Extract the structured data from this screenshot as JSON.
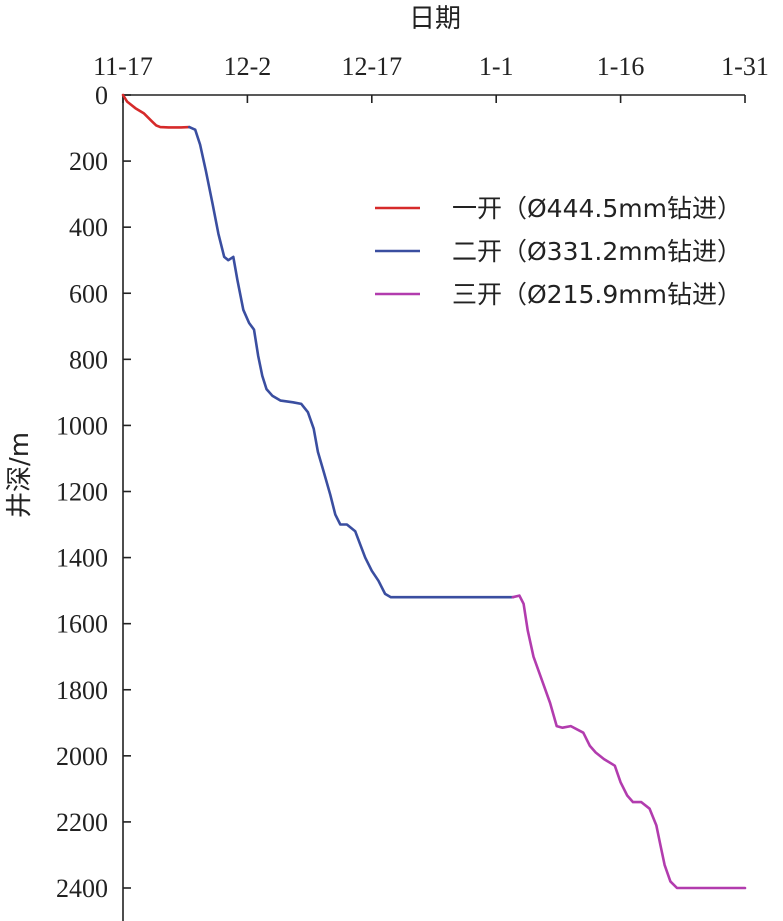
{
  "chart_data": {
    "type": "line",
    "title": "",
    "xlabel": "日期",
    "ylabel": "井深/m",
    "x_axis_position": "top",
    "y_axis_inverted": true,
    "x_ticks": [
      "11-17",
      "12-2",
      "12-17",
      "1-1",
      "1-16",
      "1-31"
    ],
    "x_tick_days": [
      0,
      15,
      30,
      45,
      60,
      75
    ],
    "y_ticks": [
      0,
      200,
      400,
      600,
      800,
      1000,
      1200,
      1400,
      1600,
      1800,
      2000,
      2200,
      2400
    ],
    "xlim_days_from_11_17": [
      0,
      75
    ],
    "ylim": [
      0,
      2400
    ],
    "x_unit_note": "x values are days after 11-17",
    "legend_position": "top-right",
    "series": [
      {
        "name": "一开（Ø444.5mm钻进）",
        "color": "#d62a2a",
        "points": [
          [
            0,
            0
          ],
          [
            0.5,
            20
          ],
          [
            1.5,
            40
          ],
          [
            2.5,
            55
          ],
          [
            3.5,
            80
          ],
          [
            4.0,
            92
          ],
          [
            4.5,
            97
          ],
          [
            5.5,
            98
          ],
          [
            7.0,
            98
          ],
          [
            8.0,
            97
          ]
        ]
      },
      {
        "name": "二开（Ø331.2mm钻进）",
        "color": "#3a4ea0",
        "points": [
          [
            8.0,
            97
          ],
          [
            8.7,
            105
          ],
          [
            9.3,
            150
          ],
          [
            10.0,
            230
          ],
          [
            10.8,
            330
          ],
          [
            11.5,
            420
          ],
          [
            12.2,
            490
          ],
          [
            12.7,
            500
          ],
          [
            13.3,
            490
          ],
          [
            13.8,
            560
          ],
          [
            14.5,
            650
          ],
          [
            15.2,
            690
          ],
          [
            15.8,
            710
          ],
          [
            16.3,
            790
          ],
          [
            16.8,
            850
          ],
          [
            17.3,
            890
          ],
          [
            18.0,
            910
          ],
          [
            19.0,
            925
          ],
          [
            20.5,
            930
          ],
          [
            21.5,
            935
          ],
          [
            22.3,
            960
          ],
          [
            23.0,
            1010
          ],
          [
            23.5,
            1080
          ],
          [
            24.2,
            1140
          ],
          [
            25.0,
            1210
          ],
          [
            25.6,
            1270
          ],
          [
            26.2,
            1300
          ],
          [
            27.0,
            1300
          ],
          [
            28.0,
            1320
          ],
          [
            28.6,
            1360
          ],
          [
            29.2,
            1400
          ],
          [
            30.0,
            1440
          ],
          [
            30.8,
            1470
          ],
          [
            31.6,
            1510
          ],
          [
            32.3,
            1520
          ],
          [
            36.0,
            1520
          ],
          [
            40.0,
            1520
          ],
          [
            44.0,
            1520
          ],
          [
            47.0,
            1520
          ]
        ]
      },
      {
        "name": "三开（Ø215.9mm钻进）",
        "color": "#b23cae",
        "points": [
          [
            47.0,
            1520
          ],
          [
            47.8,
            1515
          ],
          [
            48.3,
            1540
          ],
          [
            48.8,
            1620
          ],
          [
            49.5,
            1700
          ],
          [
            50.5,
            1770
          ],
          [
            51.5,
            1840
          ],
          [
            52.3,
            1910
          ],
          [
            53.0,
            1915
          ],
          [
            54.0,
            1910
          ],
          [
            55.5,
            1930
          ],
          [
            56.3,
            1970
          ],
          [
            57.0,
            1990
          ],
          [
            58.0,
            2010
          ],
          [
            59.3,
            2030
          ],
          [
            60.0,
            2080
          ],
          [
            60.8,
            2120
          ],
          [
            61.5,
            2140
          ],
          [
            62.5,
            2140
          ],
          [
            63.5,
            2160
          ],
          [
            64.3,
            2210
          ],
          [
            64.8,
            2270
          ],
          [
            65.3,
            2330
          ],
          [
            66.0,
            2380
          ],
          [
            66.8,
            2400
          ],
          [
            68.0,
            2400
          ],
          [
            70.0,
            2400
          ],
          [
            75.0,
            2400
          ]
        ]
      }
    ]
  }
}
